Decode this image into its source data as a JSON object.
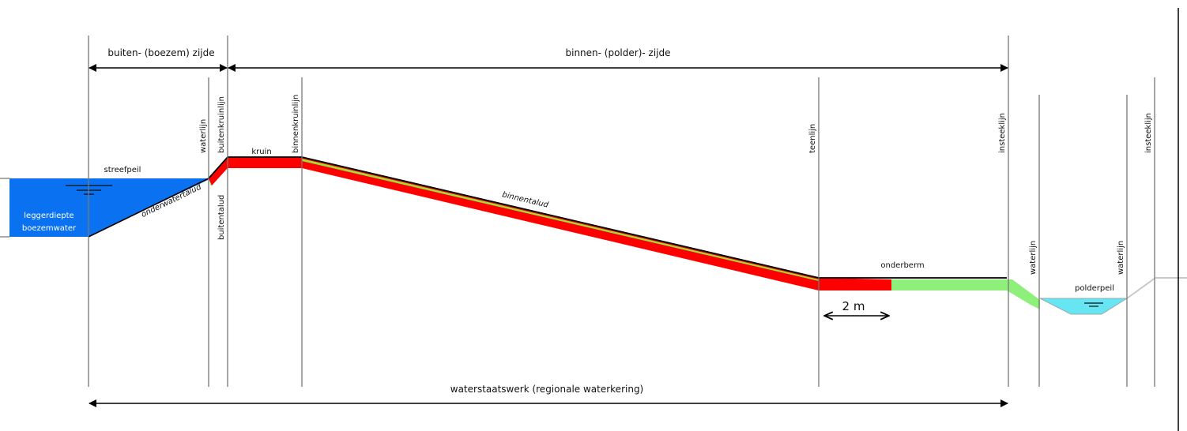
{
  "diagram": {
    "buiten_zijde": "buiten- (boezem) zijde",
    "binnen_zijde": "binnen- (polder)- zijde",
    "waterstaatswerk": "waterstaatswerk (regionale waterkering)",
    "streefpeil": "streefpeil",
    "leggerdiepte_line1": "leggerdiepte",
    "leggerdiepte_line2": "boezemwater",
    "onderwatertalud": "onderwatertalud",
    "kruin": "kruin",
    "binnentalud": "binnentalud",
    "buitentalud": "buitentalud",
    "onderberm": "onderberm",
    "scale": "2 m",
    "polderpeil": "polderpeil",
    "vertical_labels": {
      "waterlijn_left": "waterlijn",
      "buitenkruinlijn": "buitenkruinlijn",
      "binnenkruinlijn": "binnenkruinlijn",
      "teenlijn": "teenlijn",
      "insteeklijn_1": "insteeklijn",
      "waterlijn_right_1": "waterlijn",
      "waterlijn_right_2": "waterlijn",
      "insteeklijn_2": "insteeklijn"
    },
    "colors": {
      "boezem_water": "#0a72f0",
      "polder_water": "#66e6f2",
      "red_zone": "#ff0000",
      "green_zone": "#8ef07a"
    }
  }
}
